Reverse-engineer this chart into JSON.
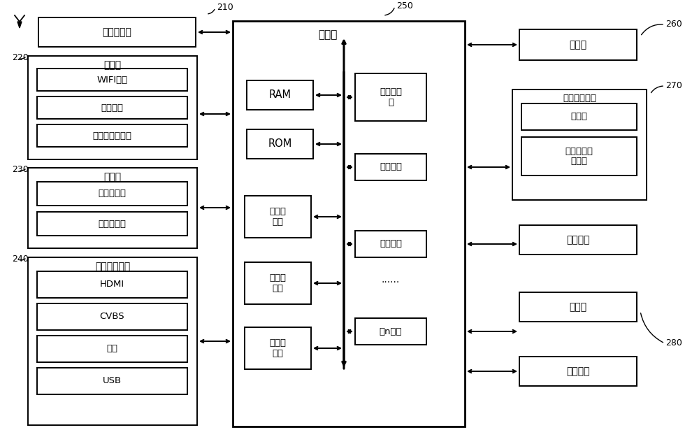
{
  "bg_color": "#ffffff",
  "fig_width": 10.0,
  "fig_height": 6.35,
  "labels": {
    "tuner": "调谐解调器",
    "comm": "通信器",
    "wifi": "WIFI模块",
    "bluetooth": "蓝牙模块",
    "ethernet": "有线以太网模块",
    "detector": "检测器",
    "audio_collector": "声音采集器",
    "image_collector": "图像采集器",
    "ext_interface": "外部装置接口",
    "hdmi": "HDMI",
    "cvbs": "CVBS",
    "component": "分量",
    "usb": "USB",
    "controller": "控制器",
    "cpu": "中央处理\n器",
    "ram": "RAM",
    "rom": "ROM",
    "video_proc": "视频处\n理器",
    "graphic_proc": "图形处\n理器",
    "audio_proc": "音频处\n理器",
    "port1": "第一接口",
    "port2": "第二接口",
    "portn": "第n接口",
    "dots": "......",
    "display": "显示器",
    "audio_out": "音频输出接口",
    "speaker": "扬声器",
    "ext_speaker": "外接音响输\n出端子",
    "power": "供电电源",
    "storage": "存储器",
    "user_if": "用户接口",
    "n210": "210",
    "n220": "220",
    "n230": "230",
    "n240": "240",
    "n250": "250",
    "n260": "260",
    "n270": "270",
    "n280": "280"
  }
}
